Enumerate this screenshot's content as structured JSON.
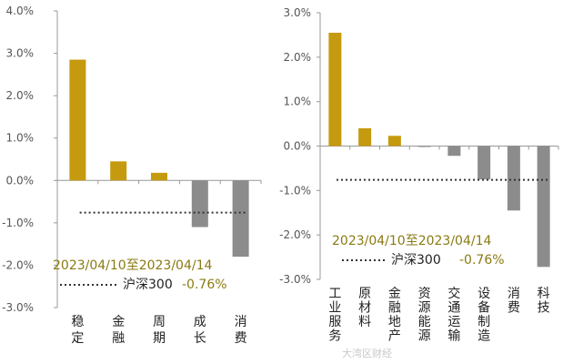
{
  "chart_data": [
    {
      "type": "bar",
      "categories": [
        "稳定",
        "金融",
        "周期",
        "成长",
        "消费"
      ],
      "values": [
        2.85,
        0.45,
        0.18,
        -1.1,
        -1.8
      ],
      "ylim": [
        -3,
        4
      ],
      "yticks": [
        "-3.0%",
        "-2.0%",
        "-1.0%",
        "0.0%",
        "1.0%",
        "2.0%",
        "3.0%",
        "4.0%"
      ],
      "grid": false,
      "reference_line": {
        "label": "沪深300",
        "value": -0.76,
        "value_text": "-0.76%",
        "style": "dotted"
      },
      "annotation": "2023/04/10至2023/04/14",
      "colors": {
        "positive": "#c59a0e",
        "negative": "#8c8c8c",
        "reference": "#333333"
      }
    },
    {
      "type": "bar",
      "categories": [
        "工业服务",
        "原材料",
        "金融地产",
        "资源能源",
        "交通运输",
        "设备制造",
        "消费",
        "科技"
      ],
      "values": [
        2.55,
        0.4,
        0.23,
        -0.02,
        -0.22,
        -0.75,
        -1.45,
        -2.72
      ],
      "ylim": [
        -3,
        3
      ],
      "yticks": [
        "-3.0%",
        "-2.0%",
        "-1.0%",
        "0.0%",
        "1.0%",
        "2.0%",
        "3.0%"
      ],
      "grid": false,
      "reference_line": {
        "label": "沪深300",
        "value": -0.76,
        "value_text": "-0.76%",
        "style": "dotted"
      },
      "annotation": "2023/04/10至2023/04/14",
      "colors": {
        "positive": "#c59a0e",
        "negative": "#8c8c8c",
        "reference": "#333333"
      }
    }
  ],
  "watermark": "大湾区财经"
}
